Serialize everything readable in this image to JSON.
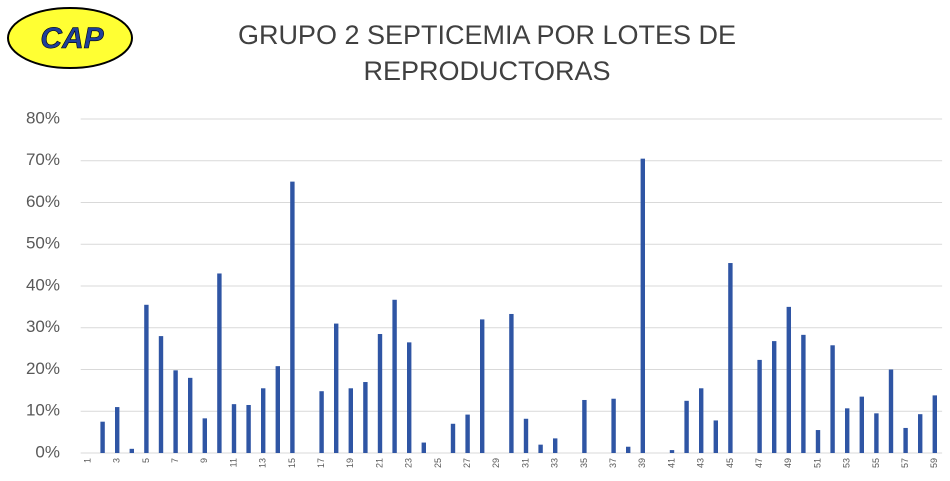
{
  "logo": "CAP",
  "chart_data": {
    "type": "bar",
    "title": [
      "GRUPO 2 SEPTICEMIA POR LOTES DE",
      "REPRODUCTORAS"
    ],
    "categories": [
      "1",
      null,
      "3",
      null,
      "5",
      null,
      "7",
      null,
      "9",
      null,
      "11",
      null,
      "13",
      null,
      "15",
      null,
      "17",
      null,
      "19",
      null,
      "21",
      null,
      "23",
      null,
      "25",
      null,
      "27",
      null,
      "29",
      null,
      "31",
      null,
      "33",
      null,
      "35",
      null,
      "37",
      null,
      "39",
      null,
      "41",
      null,
      "43",
      null,
      "45",
      null,
      "47",
      null,
      "49",
      null,
      "51",
      null,
      "53",
      null,
      "55",
      null,
      "57",
      null,
      "59"
    ],
    "values": [
      0,
      7.5,
      11,
      1,
      35.5,
      28,
      19.8,
      18,
      8.3,
      43,
      11.7,
      11.5,
      15.5,
      20.8,
      65,
      0,
      14.8,
      31,
      15.5,
      17,
      28.5,
      36.7,
      26.5,
      2.5,
      0,
      7,
      9.2,
      32,
      0,
      33.3,
      8.2,
      2,
      3.5,
      0,
      12.7,
      0,
      13,
      1.5,
      70.5,
      0,
      0.7,
      12.5,
      15.5,
      7.8,
      45.5,
      0,
      22.3,
      26.8,
      35,
      28.3,
      5.5,
      25.8,
      10.7,
      13.5,
      9.5,
      20,
      6,
      9.3,
      13.8
    ],
    "color": "#2f55a4",
    "ylim": [
      0,
      80
    ],
    "yticks": [
      {
        "value": 0,
        "label": "0%"
      },
      {
        "value": 10,
        "label": "10%"
      },
      {
        "value": 20,
        "label": "20%"
      },
      {
        "value": 30,
        "label": "30%"
      },
      {
        "value": 40,
        "label": "40%"
      },
      {
        "value": 50,
        "label": "50%"
      },
      {
        "value": 60,
        "label": "60%"
      },
      {
        "value": 70,
        "label": "70%"
      },
      {
        "value": 80,
        "label": "80%"
      }
    ],
    "grid": true
  }
}
